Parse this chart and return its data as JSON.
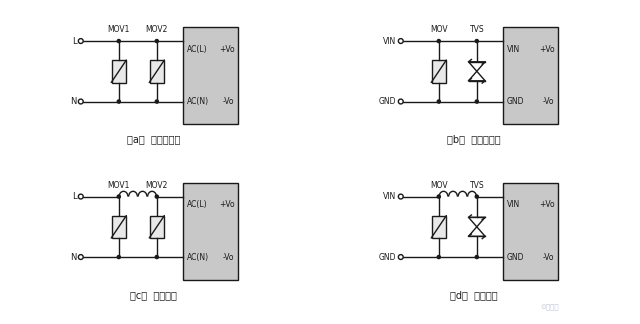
{
  "bg_color": "#ffffff",
  "box_color": "#c8c8c8",
  "line_color": "#1a1a1a",
  "captions": [
    "（a）  不恰当应用",
    "（b）  不恰当应用",
    "（c）  推荐应用",
    "（d）  推荐应用"
  ],
  "panel_layout": {
    "xlim": [
      0,
      10
    ],
    "ylim": [
      0,
      9
    ]
  }
}
